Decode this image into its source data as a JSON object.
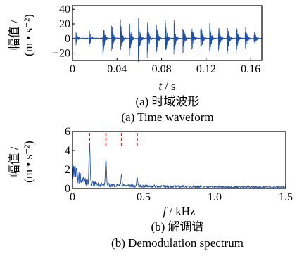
{
  "chart_data": [
    {
      "type": "line",
      "xlabel": "t / s",
      "xlabel_var": "t",
      "xlabel_unit": "/ s",
      "ylabel_line1": "幅值 /",
      "ylabel_line2": "(m • s⁻²)",
      "xlim": [
        0,
        0.17
      ],
      "ylim": [
        -30,
        45
      ],
      "xticks": [
        "0",
        "0.04",
        "0.08",
        "0.12",
        "0.16"
      ],
      "yticks": [
        "40",
        "20",
        "0",
        "−20"
      ],
      "xtick_values": [
        0,
        0.04,
        0.08,
        0.12,
        0.16
      ],
      "ytick_values": [
        40,
        20,
        0,
        -20
      ],
      "line_color": "#1f4fa8",
      "caption_cn": "(a)  时域波形",
      "caption_en": "(a)  Time waveform",
      "impulses": [
        {
          "t": 0.003,
          "a": 12
        },
        {
          "t": 0.015,
          "a": 14
        },
        {
          "t": 0.027,
          "a": 33
        },
        {
          "t": 0.035,
          "a": 26
        },
        {
          "t": 0.043,
          "a": 28
        },
        {
          "t": 0.051,
          "a": 30
        },
        {
          "t": 0.059,
          "a": 34
        },
        {
          "t": 0.067,
          "a": 30
        },
        {
          "t": 0.075,
          "a": 30
        },
        {
          "t": 0.083,
          "a": 36
        },
        {
          "t": 0.091,
          "a": 30
        },
        {
          "t": 0.099,
          "a": 26
        },
        {
          "t": 0.107,
          "a": 25
        },
        {
          "t": 0.115,
          "a": 30
        },
        {
          "t": 0.123,
          "a": 28
        },
        {
          "t": 0.131,
          "a": 24
        },
        {
          "t": 0.139,
          "a": 26
        },
        {
          "t": 0.147,
          "a": 24
        },
        {
          "t": 0.155,
          "a": 25
        },
        {
          "t": 0.163,
          "a": 16
        }
      ]
    },
    {
      "type": "line",
      "xlabel": "f / kHz",
      "xlabel_var": "f",
      "xlabel_unit": "/ kHz",
      "ylabel_line1": "幅值 /",
      "ylabel_line2": "(m • s⁻²)",
      "xlim": [
        0,
        1.5
      ],
      "ylim": [
        0,
        6
      ],
      "xticks": [
        "0",
        "0.5",
        "1.0",
        "1.5"
      ],
      "yticks": [
        "6",
        "4",
        "2",
        "0"
      ],
      "xtick_values": [
        0,
        0.5,
        1.0,
        1.5
      ],
      "ytick_values": [
        6,
        4,
        2,
        0
      ],
      "line_color": "#1f4fa8",
      "marker_color": "#e02020",
      "marker_freqs": [
        0.12,
        0.235,
        0.345,
        0.455
      ],
      "peaks": [
        {
          "f": 0.12,
          "a": 4.8
        },
        {
          "f": 0.235,
          "a": 3.1
        },
        {
          "f": 0.345,
          "a": 1.5
        },
        {
          "f": 0.455,
          "a": 1.2
        }
      ],
      "caption_cn": "(b)  解调谱",
      "caption_en": "(b)  Demodulation spectrum"
    }
  ]
}
